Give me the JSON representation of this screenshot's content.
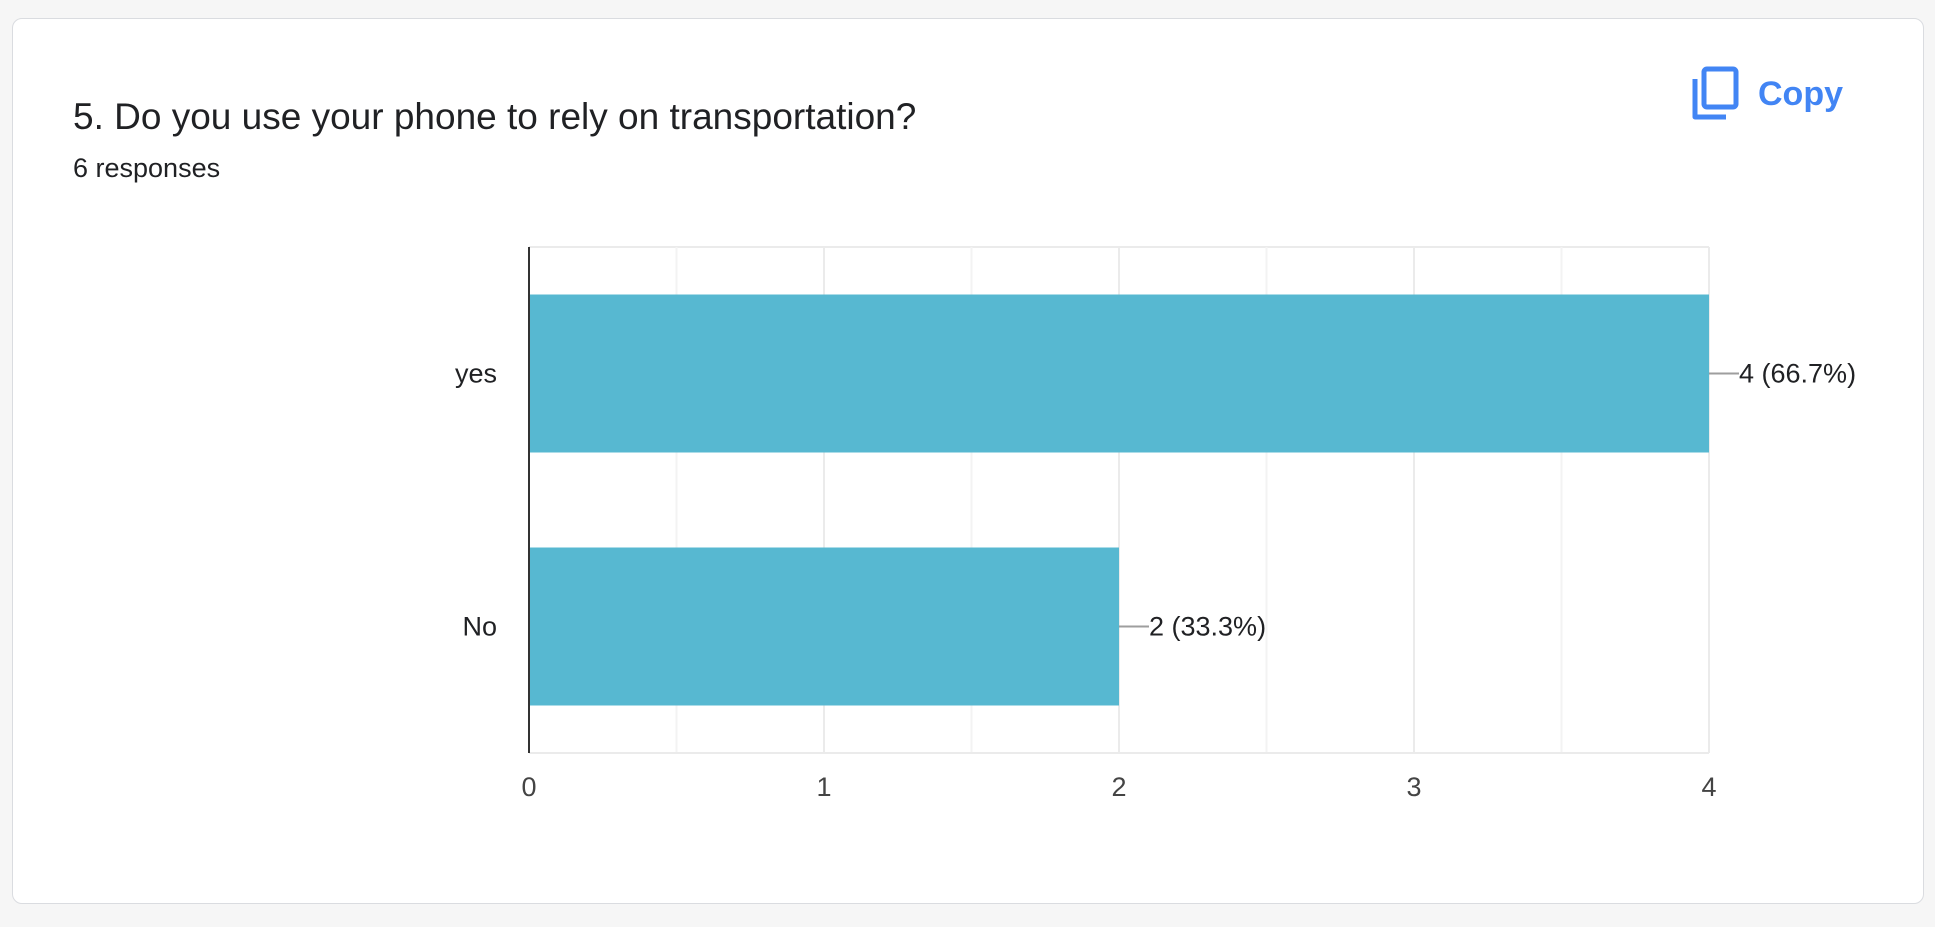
{
  "question": {
    "title": "5. Do you use your phone to rely on transportation?",
    "responses": "6 responses"
  },
  "copy_button": {
    "label": "Copy",
    "icon": "copy-icon"
  },
  "colors": {
    "bar": "#57b8d1",
    "accent": "#4285f4",
    "grid": "#ebebeb",
    "axis": "#333333",
    "text": "#202124"
  },
  "chart_data": {
    "type": "bar",
    "orientation": "horizontal",
    "categories": [
      "yes",
      "No"
    ],
    "values": [
      4,
      2
    ],
    "data_labels": [
      "4 (66.7%)",
      "2 (33.3%)"
    ],
    "xlim": [
      0,
      4
    ],
    "xticks": [
      0,
      1,
      2,
      3,
      4
    ],
    "minor_gridlines": true,
    "grid": true,
    "title": "",
    "xlabel": "",
    "ylabel": ""
  }
}
